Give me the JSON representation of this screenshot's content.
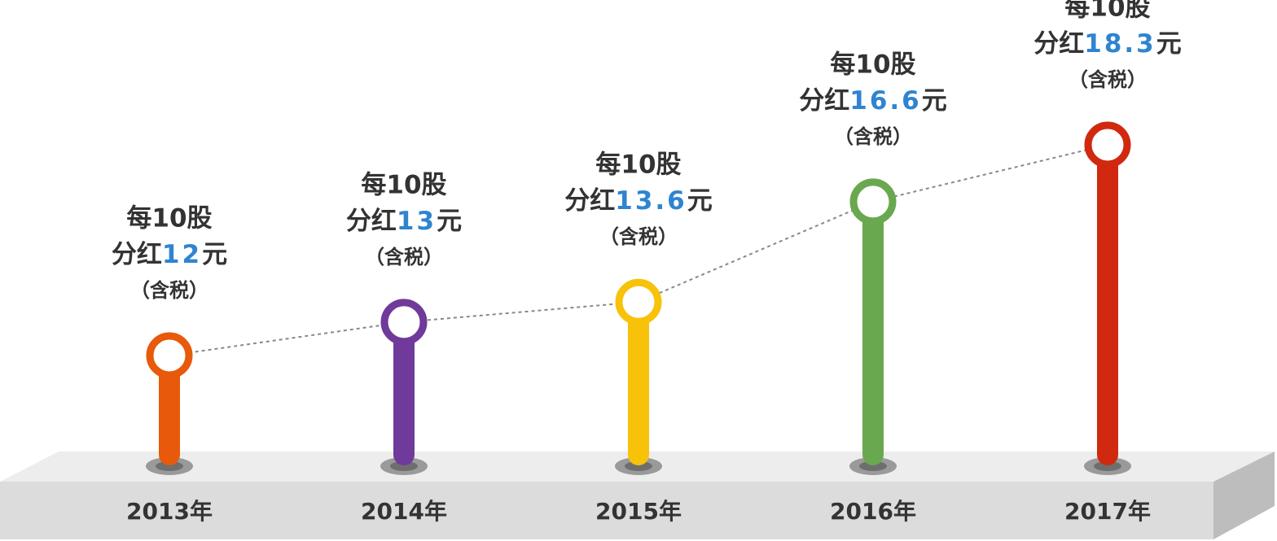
{
  "chart_data": {
    "type": "pin",
    "categories": [
      "2013年",
      "2014年",
      "2015年",
      "2016年",
      "2017年"
    ],
    "values": [
      12,
      13,
      13.6,
      16.6,
      18.3
    ],
    "colors": [
      "#e8590c",
      "#6f3a9a",
      "#f8c20a",
      "#6aa84f",
      "#d0290f"
    ],
    "label_top": "每10股",
    "label_prefix": "分红",
    "label_unit": "元",
    "label_note": "（含税）",
    "value_color": "#2f84d0"
  }
}
